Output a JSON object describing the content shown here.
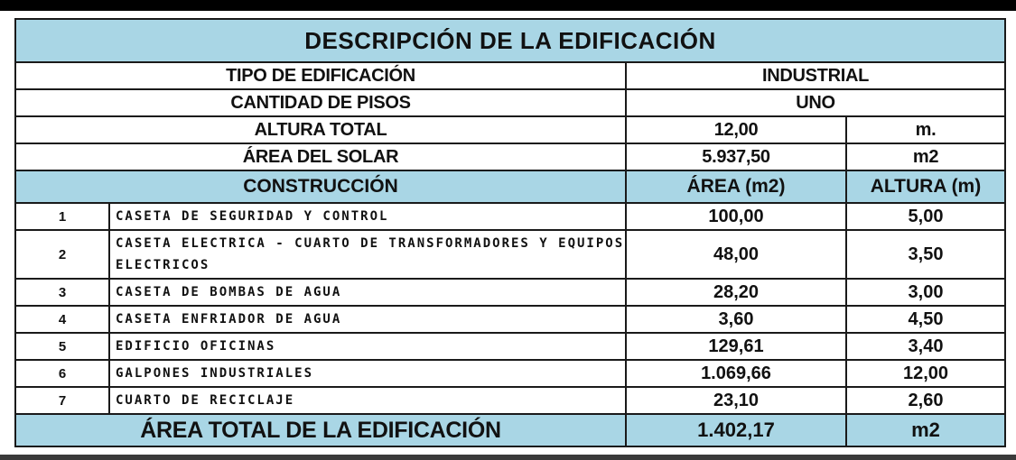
{
  "title": "DESCRIPCIÓN DE LA EDIFICACIÓN",
  "info": [
    {
      "label": "TIPO DE EDIFICACIÓN",
      "value": "INDUSTRIAL",
      "unit": ""
    },
    {
      "label": "CANTIDAD DE PISOS",
      "value": "UNO",
      "unit": ""
    },
    {
      "label": "ALTURA TOTAL",
      "value": "12,00",
      "unit": "m."
    },
    {
      "label": "ÁREA DEL SOLAR",
      "value": "5.937,50",
      "unit": "m2"
    }
  ],
  "headers": {
    "construccion": "CONSTRUCCIÓN",
    "area": "ÁREA (m2)",
    "altura": "ALTURA (m)"
  },
  "items": [
    {
      "num": "1",
      "desc": "CASETA DE SEGURIDAD Y CONTROL",
      "area": "100,00",
      "altura": "5,00"
    },
    {
      "num": "2",
      "desc": "CASETA ELECTRICA - CUARTO DE TRANSFORMADORES Y EQUIPOS ELECTRICOS",
      "area": "48,00",
      "altura": "3,50"
    },
    {
      "num": "3",
      "desc": "CASETA DE BOMBAS DE AGUA",
      "area": "28,20",
      "altura": "3,00"
    },
    {
      "num": "4",
      "desc": "CASETA ENFRIADOR DE AGUA",
      "area": "3,60",
      "altura": "4,50"
    },
    {
      "num": "5",
      "desc": "EDIFICIO OFICINAS",
      "area": "129,61",
      "altura": "3,40"
    },
    {
      "num": "6",
      "desc": "GALPONES INDUSTRIALES",
      "area": "1.069,66",
      "altura": "12,00"
    },
    {
      "num": "7",
      "desc": "CUARTO DE RECICLAJE",
      "area": "23,10",
      "altura": "2,60"
    }
  ],
  "total": {
    "label": "ÁREA TOTAL DE LA EDIFICACIÓN",
    "value": "1.402,17",
    "unit": "m2"
  }
}
